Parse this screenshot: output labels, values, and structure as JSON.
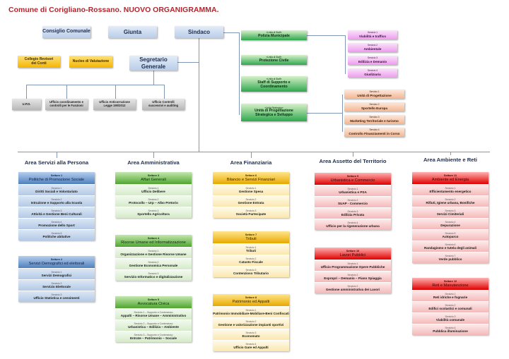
{
  "title": "Comune di Corigliano-Rossano. NUOVO ORGANIGRAMMA.",
  "top": {
    "consiglio": "Consiglio Comunale",
    "giunta": "Giunta",
    "sindaco": "Sindaco",
    "collegio": "Collegio Revisori dei Conti",
    "nucleo": "Nucleo di Valutazione",
    "segretario": "Segretario Generale"
  },
  "segretario_offices": [
    "U.P.D.",
    "Ufficio coordinamento e controlli per le Funzioni",
    "Ufficio Anticorruzione Legge 190/2012",
    "Ufficio Controlli successivi e auditing"
  ],
  "staff": [
    {
      "tag": "«Unità di Staff»",
      "label": "Polizia Municipale"
    },
    {
      "tag": "«Unità di Staff»",
      "label": "Protezione Civile"
    },
    {
      "tag": "«Unità di Staff»",
      "label": "Staff di Supporto e Coordinamento"
    },
    {
      "tag": "«Unità Strategica»",
      "label": "Unità di Progettazione Strategica e Sviluppo"
    }
  ],
  "polizia_services": [
    {
      "tag": "Servizio 1",
      "label": "Viabilità e traffico"
    },
    {
      "tag": "Servizio 2",
      "label": "Ambientale"
    },
    {
      "tag": "Servizio 3",
      "label": "Edilizia e Demanio"
    },
    {
      "tag": "Servizio 4",
      "label": "Giudiziaria"
    }
  ],
  "progettazione_services": [
    {
      "tag": "Servizio 1",
      "label": "Unità di Progettazione"
    },
    {
      "tag": "Servizio 2",
      "label": "Sportello Europa"
    },
    {
      "tag": "Servizio 3",
      "label": "Marketing Territoriale e turismo"
    },
    {
      "tag": "Servizio 4",
      "label": "Controllo Finanziamenti in Corso"
    }
  ],
  "colors": {
    "blue": "#4f81bd",
    "green": "#4ea72e",
    "yellow": "#f0b400",
    "red": "#e00000",
    "title": "#b0262e"
  },
  "areas": [
    {
      "name": "Area Servizi alla Persona",
      "theme": "blue",
      "sectors": [
        {
          "num": "Settore 1",
          "name": "Politiche di Promozione Sociale",
          "services": [
            {
              "tag": "Servizio 1",
              "label": "Diritti Sociali e Volontariato"
            },
            {
              "tag": "Servizio 2",
              "label": "Istruzione e Supporto alla Scuola"
            },
            {
              "tag": "Servizio 3",
              "label": "Attività e Gestione Beni Culturali"
            },
            {
              "tag": "Servizio 4",
              "label": "Promozione dello Sport"
            },
            {
              "tag": "Servizio 5",
              "label": "Politiche abitative"
            }
          ]
        },
        {
          "num": "Settore 2",
          "name": "Servizi Demografici ed elettorali",
          "services": [
            {
              "tag": "Servizio 1",
              "label": "Servizi Demografici"
            },
            {
              "tag": "Servizio 2",
              "label": "Servizio Elettorale"
            },
            {
              "tag": "Servizio 3",
              "label": "Ufficio Statistica e censimenti"
            }
          ]
        }
      ]
    },
    {
      "name": "Area Amministrativa",
      "theme": "green",
      "sectors": [
        {
          "num": "Settore 3",
          "name": "Affari Generali",
          "services": [
            {
              "tag": "Servizio 1",
              "label": "Ufficio Delibere"
            },
            {
              "tag": "Servizio 2",
              "label": "Protocollo – Urp – Albo Pretorio"
            },
            {
              "tag": "Servizio 3",
              "label": "Sportello Agricoltura"
            }
          ]
        },
        {
          "num": "Settore 4",
          "name": "Risorse Umane ed Informatizzazione",
          "services": [
            {
              "tag": "Servizio 1",
              "label": "Organizzazione e Gestione Risorse Umane"
            },
            {
              "tag": "Servizio 2",
              "label": "Gestione Economica Personale"
            },
            {
              "tag": "Servizio 3",
              "label": "Servizio Informatico e digitalizzazione"
            }
          ]
        },
        {
          "num": "Settore 5",
          "name": "Avvocatura Civica",
          "services": [
            {
              "tag": "Servizio 1 – Supporto e Contenzioso",
              "label": "Appalti – Risorse Umane – Amministrativo"
            },
            {
              "tag": "Servizio 2 – Supporto e Contenzioso",
              "label": "Urbanistica – Edilizia – Ambiente"
            },
            {
              "tag": "Servizio 3 – Supporto e Contenzioso",
              "label": "Entrate – Patrimonio – Sociale"
            }
          ]
        }
      ]
    },
    {
      "name": "Area Finanziaria",
      "theme": "yellow",
      "sectors": [
        {
          "num": "Settore 6",
          "name": "Bilancio e Servizi Finanziari",
          "services": [
            {
              "tag": "Servizio 1",
              "label": "Gestione Spesa"
            },
            {
              "tag": "Servizio 2",
              "label": "Gestione Entrata"
            },
            {
              "tag": "Servizio 3",
              "label": "Società Partecipate"
            }
          ]
        },
        {
          "num": "Settore 7",
          "name": "Tributi",
          "services": [
            {
              "tag": "Servizio 1",
              "label": "Tributi"
            },
            {
              "tag": "Servizio 2",
              "label": "Catasto Fiscale"
            },
            {
              "tag": "Servizio 3",
              "label": "Contenzioso Tributario"
            }
          ]
        },
        {
          "num": "Settore 8",
          "name": "Patrimonio ed Appalti",
          "services": [
            {
              "tag": "Servizio 1",
              "label": "Patrimonio Immobiliare-Mobiliare-Beni Confiscati"
            },
            {
              "tag": "Servizio 2",
              "label": "Gestione e valorizzazione impianti sportivi"
            },
            {
              "tag": "Servizio 3",
              "label": "Economato"
            },
            {
              "tag": "Servizio 4",
              "label": "Ufficio Gare ed Appalti"
            }
          ]
        }
      ]
    },
    {
      "name": "Area Assetto del Territorio",
      "theme": "red",
      "sectors": [
        {
          "num": "Settore 9",
          "name": "Urbanistica e Commercio",
          "services": [
            {
              "tag": "Servizio 1",
              "label": "Urbanistica e PSA"
            },
            {
              "tag": "Servizio 2",
              "label": "SUAP - Commercio"
            },
            {
              "tag": "Servizio 3",
              "label": "Edilizia Privata"
            },
            {
              "tag": "Servizio 4",
              "label": "Ufficio per la rigenerazione urbana"
            }
          ]
        },
        {
          "num": "Settore 10",
          "name": "Lavori Pubblici",
          "services": [
            {
              "tag": "Servizio 1",
              "label": "Ufficio Programmazione Opere Pubbliche"
            },
            {
              "tag": "Servizio 2",
              "label": "Espropri – Demanio – Piano Spiaggia"
            },
            {
              "tag": "Servizio 2",
              "label": "Gestione amministrativa dei Lavori"
            }
          ]
        }
      ]
    },
    {
      "name": "Area Ambiente e Reti",
      "theme": "red",
      "sectors": [
        {
          "num": "Settore 11",
          "name": "Ambiente ed Energia",
          "services": [
            {
              "tag": "Servizio 1",
              "label": "Efficientamento energetico"
            },
            {
              "tag": "Servizio 2",
              "label": "Rifiuti, Igiene urbana, Bonifiche"
            },
            {
              "tag": "Servizio 3",
              "label": "Servizi Cimiteriali"
            },
            {
              "tag": "Servizio 4",
              "label": "Depurazione"
            },
            {
              "tag": "Servizio 5",
              "label": "Autoparco"
            },
            {
              "tag": "Servizio 6",
              "label": "Randagismo e tutela degli animali"
            },
            {
              "tag": "Servizio 7",
              "label": "Verde pubblico"
            }
          ]
        },
        {
          "num": "Settore 12",
          "name": "Reti e Manutenzione",
          "services": [
            {
              "tag": "Servizio 1",
              "label": "Reti idriche e fognarie"
            },
            {
              "tag": "Servizio 2",
              "label": "Edifici scolastici e comunali"
            },
            {
              "tag": "Servizio 3",
              "label": "Viabilità comunale"
            },
            {
              "tag": "Servizio 4",
              "label": "Pubblica illuminazione"
            }
          ]
        }
      ]
    }
  ]
}
